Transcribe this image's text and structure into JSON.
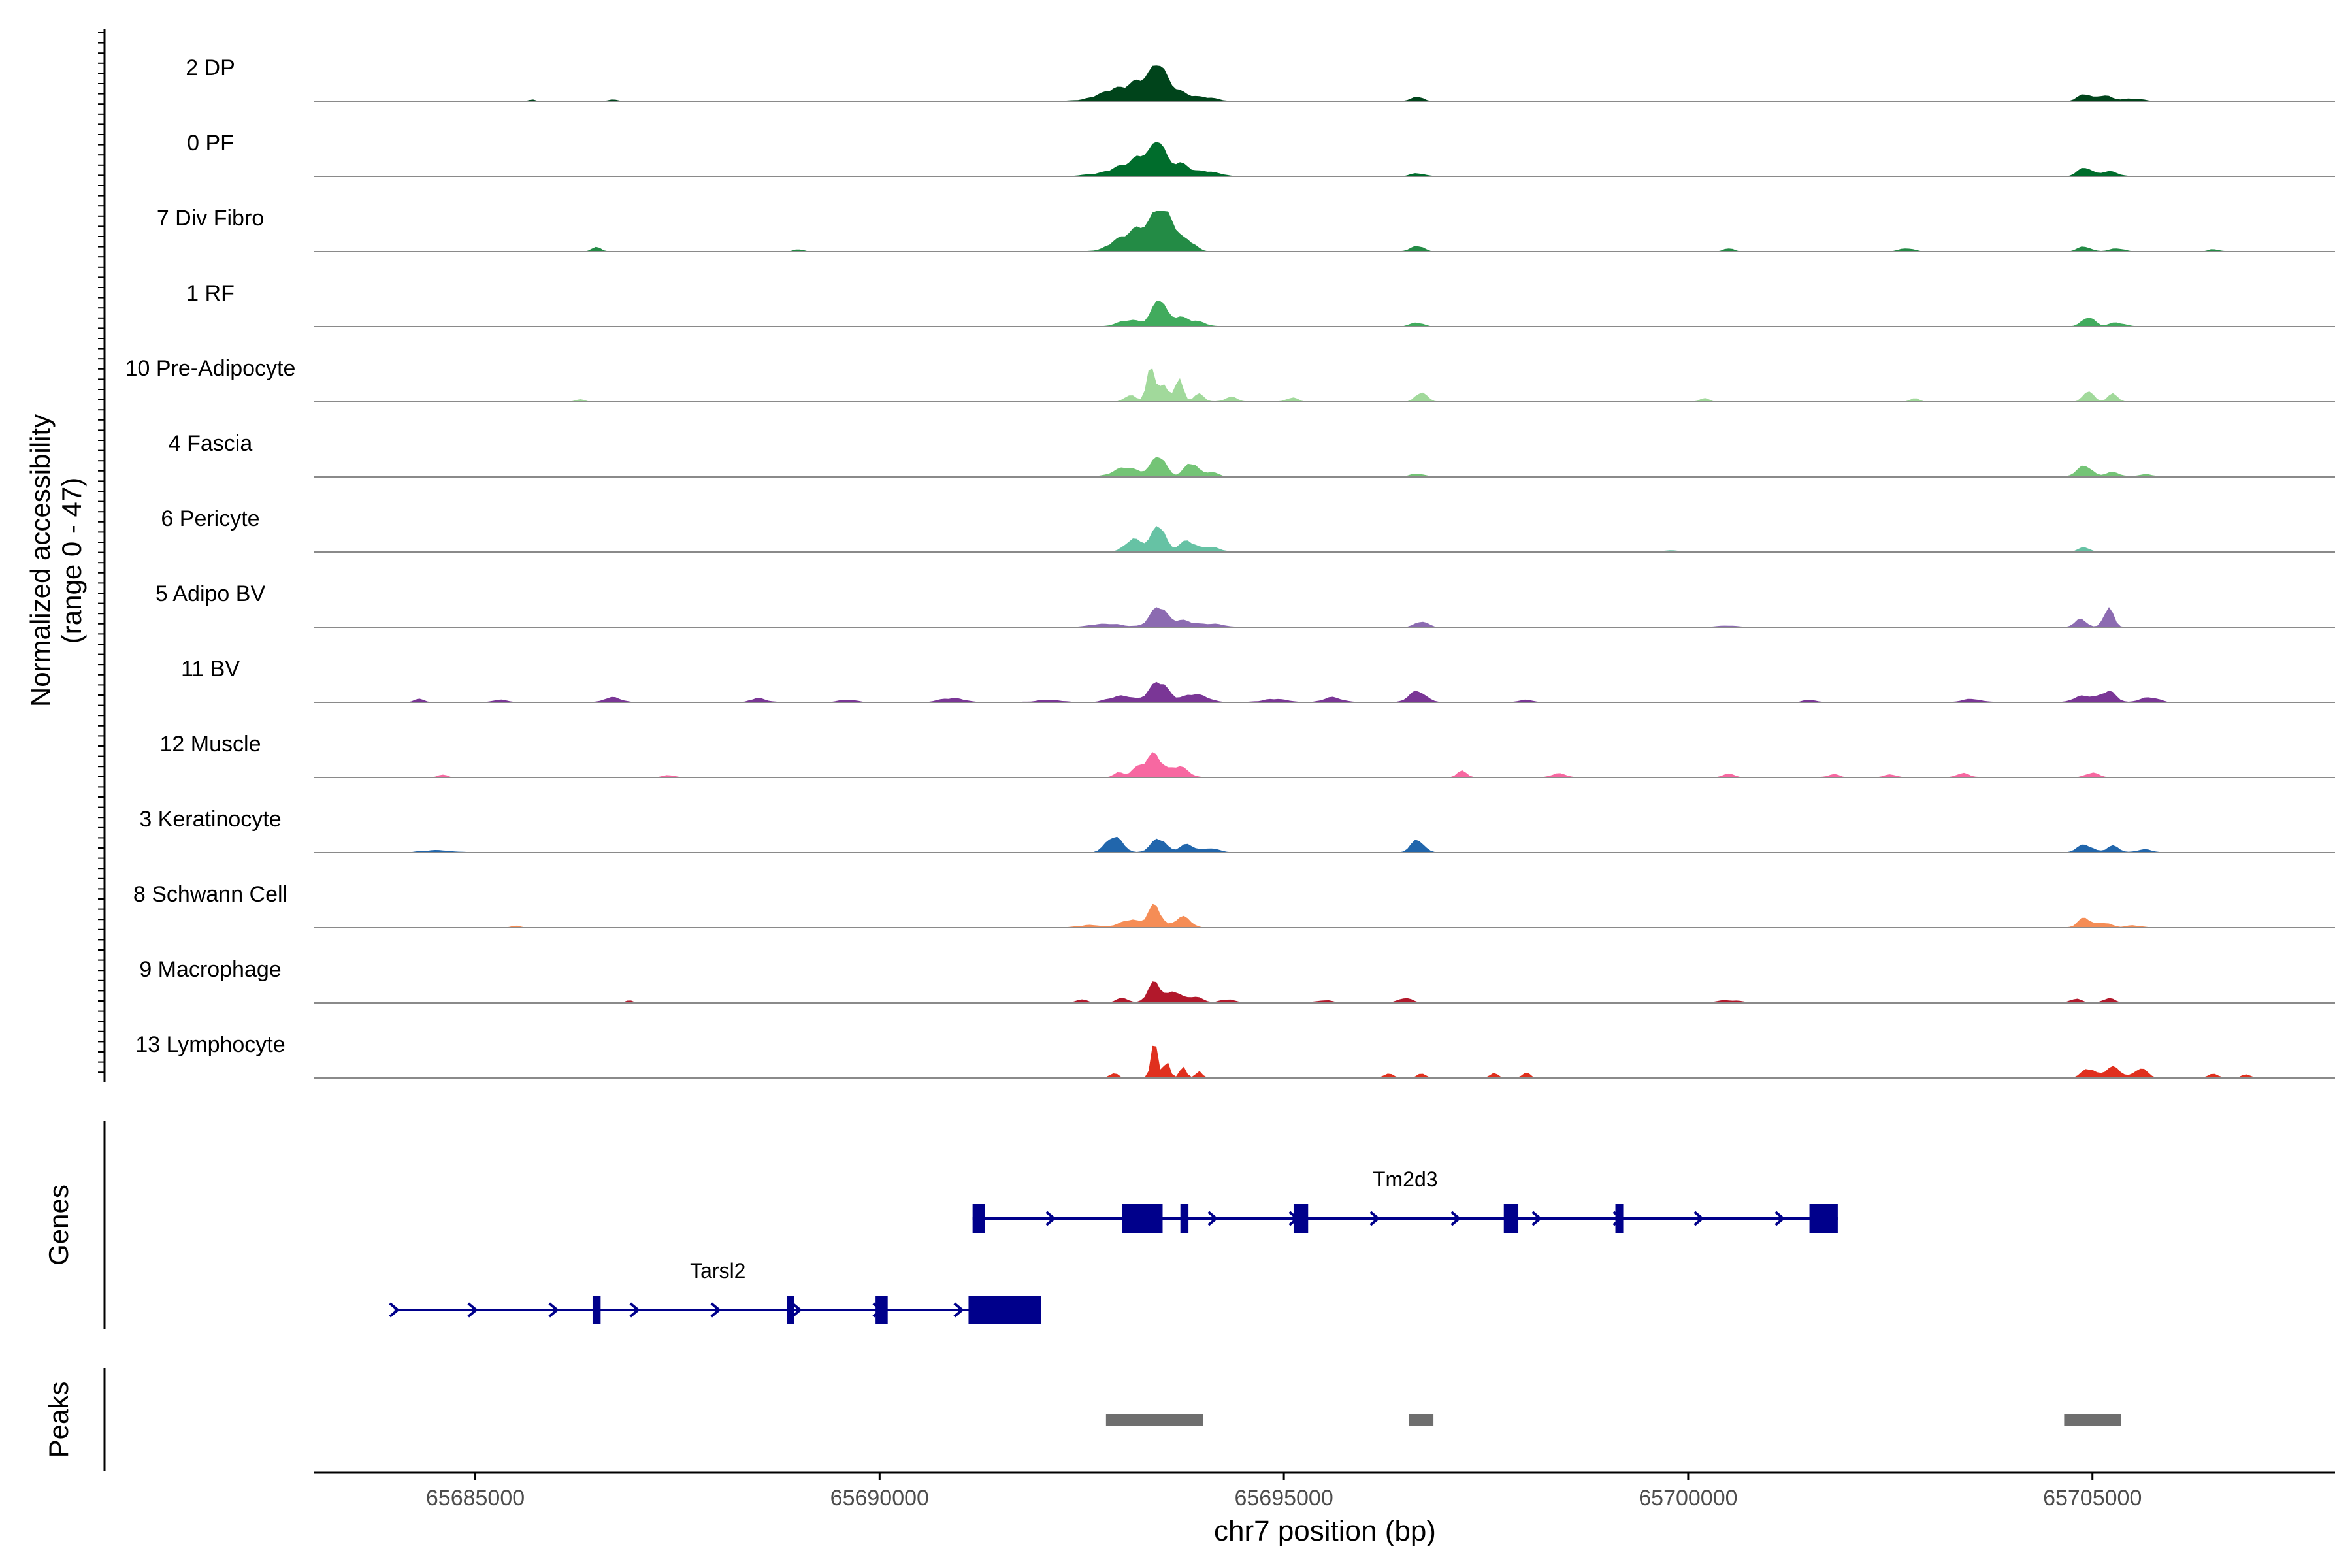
{
  "chart_data": {
    "type": "area",
    "title": "",
    "xlabel": "chr7 position (bp)",
    "ylabel": [
      "Normalized accessibility",
      "(range 0 - 47)"
    ],
    "xlim": [
      65683000,
      65708000
    ],
    "ylim": [
      0,
      47
    ],
    "xticks": [
      65685000,
      65690000,
      65695000,
      65700000,
      65705000
    ],
    "xtick_labels": [
      "65685000",
      "65690000",
      "65695000",
      "65700000",
      "65705000"
    ],
    "tracks": [
      {
        "name": "2 DP",
        "color": "#00441b",
        "peaks": [
          [
            65692800,
            6,
            200
          ],
          [
            65693000,
            12,
            180
          ],
          [
            65693250,
            20,
            120
          ],
          [
            65693450,
            38,
            90
          ],
          [
            65693650,
            14,
            130
          ],
          [
            65694000,
            5,
            150
          ],
          [
            65696650,
            6,
            70
          ],
          [
            65704900,
            9,
            80
          ],
          [
            65705150,
            7,
            90
          ],
          [
            65705500,
            3,
            120
          ],
          [
            65685700,
            2,
            40
          ],
          [
            65686700,
            2,
            60
          ]
        ]
      },
      {
        "name": "0 PF",
        "color": "#006d2c",
        "peaks": [
          [
            65692600,
            2,
            150
          ],
          [
            65693000,
            12,
            160
          ],
          [
            65693250,
            22,
            110
          ],
          [
            65693450,
            40,
            80
          ],
          [
            65693700,
            16,
            120
          ],
          [
            65694050,
            6,
            150
          ],
          [
            65696650,
            4,
            80
          ],
          [
            65704900,
            11,
            80
          ],
          [
            65705200,
            6,
            110
          ]
        ]
      },
      {
        "name": "7 Div Fibro",
        "color": "#238b45",
        "peaks": [
          [
            65693000,
            16,
            150
          ],
          [
            65693250,
            26,
            120
          ],
          [
            65693450,
            45,
            80
          ],
          [
            65693600,
            32,
            80
          ],
          [
            65693800,
            14,
            100
          ],
          [
            65686500,
            5,
            60
          ],
          [
            65689000,
            3,
            60
          ],
          [
            65696650,
            7,
            80
          ],
          [
            65700500,
            4,
            60
          ],
          [
            65702700,
            4,
            80
          ],
          [
            65704900,
            6,
            80
          ],
          [
            65705300,
            4,
            90
          ],
          [
            65706500,
            3,
            60
          ]
        ]
      },
      {
        "name": "1 RF",
        "color": "#41ab5d",
        "peaks": [
          [
            65693100,
            8,
            150
          ],
          [
            65693450,
            33,
            80
          ],
          [
            65693700,
            12,
            120
          ],
          [
            65693950,
            5,
            100
          ],
          [
            65696650,
            5,
            80
          ],
          [
            65704950,
            12,
            80
          ],
          [
            65705300,
            5,
            90
          ]
        ]
      },
      {
        "name": "10 Pre-Adipocyte",
        "color": "#a1d99b",
        "peaks": [
          [
            65693100,
            8,
            70
          ],
          [
            65693350,
            41,
            50
          ],
          [
            65693500,
            22,
            60
          ],
          [
            65693700,
            30,
            50
          ],
          [
            65693950,
            10,
            60
          ],
          [
            65694350,
            6,
            80
          ],
          [
            65695100,
            5,
            70
          ],
          [
            65696700,
            12,
            70
          ],
          [
            65686300,
            3,
            60
          ],
          [
            65700200,
            4,
            60
          ],
          [
            65702800,
            4,
            60
          ],
          [
            65704950,
            14,
            60
          ],
          [
            65705250,
            10,
            60
          ]
        ]
      },
      {
        "name": "4 Fascia",
        "color": "#74c476",
        "peaks": [
          [
            65693050,
            12,
            150
          ],
          [
            65693450,
            26,
            90
          ],
          [
            65693850,
            18,
            80
          ],
          [
            65694100,
            6,
            90
          ],
          [
            65696650,
            4,
            80
          ],
          [
            65704900,
            14,
            90
          ],
          [
            65705250,
            6,
            90
          ],
          [
            65705650,
            3,
            100
          ]
        ]
      },
      {
        "name": "6 Pericyte",
        "color": "#66c2a4",
        "peaks": [
          [
            65693150,
            16,
            110
          ],
          [
            65693450,
            34,
            80
          ],
          [
            65693800,
            14,
            100
          ],
          [
            65694100,
            6,
            110
          ],
          [
            65704900,
            6,
            70
          ],
          [
            65699800,
            2,
            120
          ]
        ]
      },
      {
        "name": "5 Adipo BV",
        "color": "#8c6bb1",
        "peaks": [
          [
            65692800,
            4,
            200
          ],
          [
            65693450,
            26,
            100
          ],
          [
            65693750,
            8,
            110
          ],
          [
            65694100,
            4,
            150
          ],
          [
            65696700,
            7,
            80
          ],
          [
            65704850,
            10,
            70
          ],
          [
            65705200,
            24,
            60
          ],
          [
            65700500,
            2,
            120
          ]
        ]
      },
      {
        "name": "11 BV",
        "color": "#7a3696",
        "peaks": [
          [
            65693000,
            8,
            150
          ],
          [
            65693450,
            26,
            110
          ],
          [
            65693900,
            10,
            150
          ],
          [
            65696650,
            14,
            100
          ],
          [
            65704900,
            8,
            120
          ],
          [
            65705200,
            14,
            90
          ],
          [
            65705700,
            6,
            110
          ],
          [
            65684300,
            4,
            60
          ],
          [
            65685300,
            3,
            90
          ],
          [
            65686700,
            6,
            100
          ],
          [
            65688500,
            5,
            90
          ],
          [
            65689600,
            3,
            100
          ],
          [
            65690900,
            5,
            150
          ],
          [
            65692100,
            3,
            150
          ],
          [
            65694900,
            4,
            150
          ],
          [
            65695600,
            6,
            110
          ],
          [
            65698000,
            3,
            80
          ],
          [
            65701500,
            3,
            80
          ],
          [
            65703500,
            4,
            120
          ]
        ]
      },
      {
        "name": "12 Muscle",
        "color": "#f768a1",
        "peaks": [
          [
            65693200,
            12,
            90
          ],
          [
            65693400,
            28,
            90
          ],
          [
            65693700,
            14,
            110
          ],
          [
            65692950,
            6,
            60
          ],
          [
            65684600,
            4,
            50
          ],
          [
            65687400,
            3,
            60
          ],
          [
            65697200,
            8,
            60
          ],
          [
            65698400,
            5,
            80
          ],
          [
            65700500,
            5,
            60
          ],
          [
            65701800,
            4,
            70
          ],
          [
            65702500,
            4,
            60
          ],
          [
            65703400,
            5,
            80
          ],
          [
            65705000,
            6,
            80
          ]
        ]
      },
      {
        "name": "3 Keratinocyte",
        "color": "#2166ac",
        "peaks": [
          [
            65692900,
            20,
            100
          ],
          [
            65693450,
            18,
            90
          ],
          [
            65693800,
            10,
            90
          ],
          [
            65694100,
            5,
            100
          ],
          [
            65696650,
            16,
            80
          ],
          [
            65704900,
            10,
            90
          ],
          [
            65705250,
            8,
            80
          ],
          [
            65705650,
            4,
            90
          ],
          [
            65684500,
            3,
            180
          ]
        ]
      },
      {
        "name": "8 Schwann Cell",
        "color": "#f58d56",
        "peaks": [
          [
            65693100,
            10,
            120
          ],
          [
            65693400,
            28,
            80
          ],
          [
            65693750,
            14,
            90
          ],
          [
            65692600,
            3,
            150
          ],
          [
            65685500,
            2,
            60
          ],
          [
            65704900,
            12,
            80
          ],
          [
            65705150,
            6,
            90
          ],
          [
            65705500,
            3,
            90
          ]
        ]
      },
      {
        "name": "9 Macrophage",
        "color": "#b2182b",
        "peaks": [
          [
            65693400,
            26,
            80
          ],
          [
            65693650,
            14,
            80
          ],
          [
            65693900,
            8,
            90
          ],
          [
            65693000,
            6,
            80
          ],
          [
            65692500,
            4,
            70
          ],
          [
            65694300,
            4,
            100
          ],
          [
            65695500,
            3,
            100
          ],
          [
            65696500,
            6,
            80
          ],
          [
            65686900,
            3,
            50
          ],
          [
            65700500,
            3,
            150
          ],
          [
            65704800,
            5,
            70
          ],
          [
            65705200,
            6,
            70
          ]
        ]
      },
      {
        "name": "13 Lymphocyte",
        "color": "#e0301e",
        "peaks": [
          [
            65693400,
            45,
            40
          ],
          [
            65693550,
            20,
            40
          ],
          [
            65693750,
            14,
            40
          ],
          [
            65693950,
            8,
            40
          ],
          [
            65692900,
            6,
            50
          ],
          [
            65696300,
            6,
            50
          ],
          [
            65696700,
            6,
            50
          ],
          [
            65697600,
            6,
            50
          ],
          [
            65698000,
            6,
            50
          ],
          [
            65704950,
            12,
            80
          ],
          [
            65705250,
            14,
            90
          ],
          [
            65705600,
            12,
            80
          ],
          [
            65706500,
            5,
            60
          ],
          [
            65706900,
            4,
            60
          ]
        ]
      }
    ],
    "genes_label": "Genes",
    "genes": [
      {
        "name": "Tm2d3",
        "row": 0,
        "start": 65691150,
        "end": 65701850,
        "strand": "+",
        "exons": [
          [
            65691150,
            65691300
          ],
          [
            65693000,
            65693500
          ],
          [
            65693720,
            65693820
          ],
          [
            65695120,
            65695300
          ],
          [
            65697720,
            65697900
          ],
          [
            65699100,
            65699170
          ],
          [
            65701500,
            65701850
          ]
        ]
      },
      {
        "name": "Tarsl2",
        "row": 1,
        "start": 65684000,
        "end": 65692000,
        "strand": "+",
        "exons": [
          [
            65686450,
            65686550
          ],
          [
            65688850,
            65688920
          ],
          [
            65689950,
            65690100
          ],
          [
            65691100,
            65692000
          ]
        ]
      }
    ],
    "peaks_label": "Peaks",
    "peak_regions": [
      [
        65692800,
        65694000
      ],
      [
        65696550,
        65696850
      ],
      [
        65704650,
        65705350
      ]
    ]
  }
}
